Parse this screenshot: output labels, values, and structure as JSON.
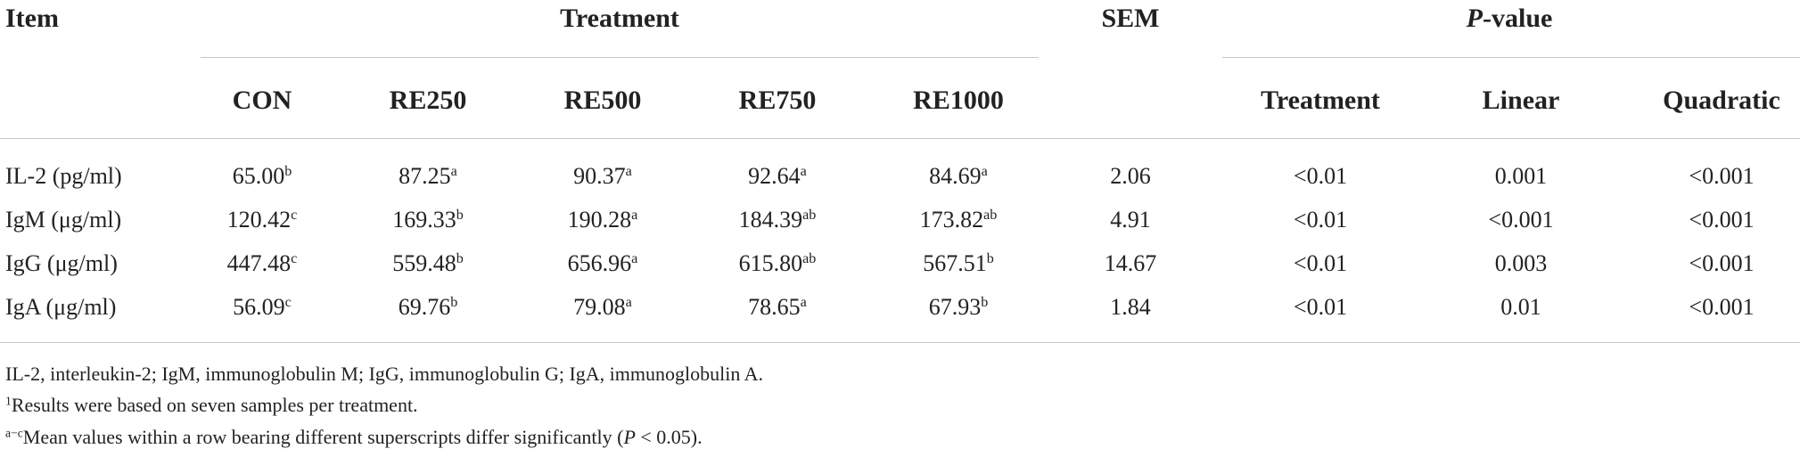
{
  "header": {
    "item": "Item",
    "treatment": "Treatment",
    "sem": "SEM",
    "p_value": {
      "italic": "P",
      "rest": "-value"
    },
    "treatment_cols": [
      "CON",
      "RE250",
      "RE500",
      "RE750",
      "RE1000"
    ],
    "p_cols": [
      "Treatment",
      "Linear",
      "Quadratic"
    ]
  },
  "table": {
    "rows": [
      {
        "item": "IL-2 (pg/ml)",
        "cells": [
          {
            "value": "65.00",
            "sup": "b"
          },
          {
            "value": "87.25",
            "sup": "a"
          },
          {
            "value": "90.37",
            "sup": "a"
          },
          {
            "value": "92.64",
            "sup": "a"
          },
          {
            "value": "84.69",
            "sup": "a"
          }
        ],
        "sem": "2.06",
        "p": [
          "<0.01",
          "0.001",
          "<0.001"
        ]
      },
      {
        "item": "IgM (μg/ml)",
        "cells": [
          {
            "value": "120.42",
            "sup": "c"
          },
          {
            "value": "169.33",
            "sup": "b"
          },
          {
            "value": "190.28",
            "sup": "a"
          },
          {
            "value": "184.39",
            "sup": "ab"
          },
          {
            "value": "173.82",
            "sup": "ab"
          }
        ],
        "sem": "4.91",
        "p": [
          "<0.01",
          "<0.001",
          "<0.001"
        ]
      },
      {
        "item": "IgG (μg/ml)",
        "cells": [
          {
            "value": "447.48",
            "sup": "c"
          },
          {
            "value": "559.48",
            "sup": "b"
          },
          {
            "value": "656.96",
            "sup": "a"
          },
          {
            "value": "615.80",
            "sup": "ab"
          },
          {
            "value": "567.51",
            "sup": "b"
          }
        ],
        "sem": "14.67",
        "p": [
          "<0.01",
          "0.003",
          "<0.001"
        ]
      },
      {
        "item": "IgA (μg/ml)",
        "cells": [
          {
            "value": "56.09",
            "sup": "c"
          },
          {
            "value": "69.76",
            "sup": "b"
          },
          {
            "value": "79.08",
            "sup": "a"
          },
          {
            "value": "78.65",
            "sup": "a"
          },
          {
            "value": "67.93",
            "sup": "b"
          }
        ],
        "sem": "1.84",
        "p": [
          "<0.01",
          "0.01",
          "<0.001"
        ]
      }
    ]
  },
  "footnotes": [
    {
      "text": "IL-2, interleukin-2; IgM, immunoglobulin M; IgG, immunoglobulin G; IgA, immunoglobulin A."
    },
    {
      "sup": "1",
      "text": "Results were based on seven samples per treatment."
    },
    {
      "sup": "a−c",
      "text": "Mean values within a row bearing different superscripts differ significantly (",
      "italic": "P",
      "tail": " < 0.05)."
    }
  ]
}
